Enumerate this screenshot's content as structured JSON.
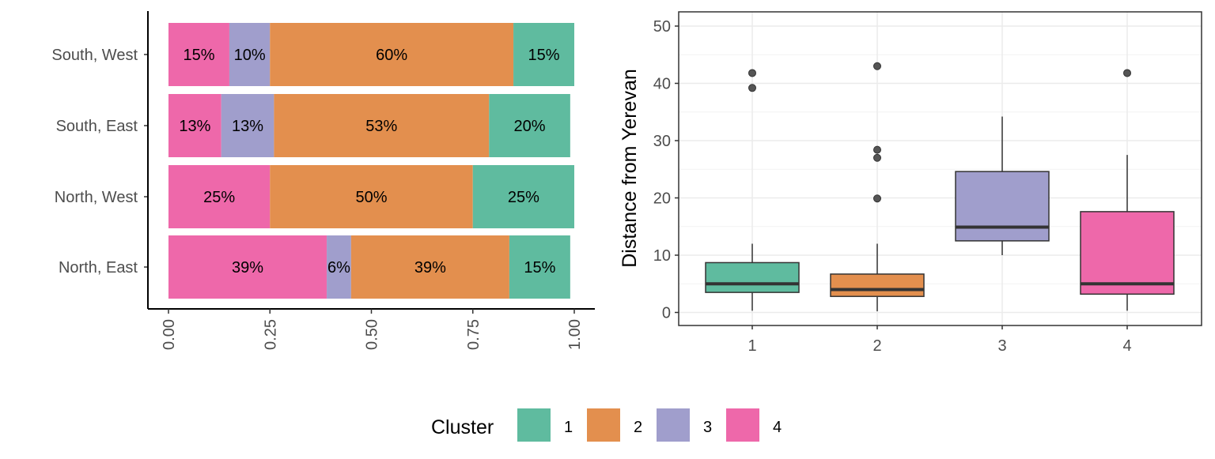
{
  "colors": {
    "cluster_1": "#5fbb9f",
    "cluster_2": "#e38f4e",
    "cluster_3": "#a09ecc",
    "cluster_4": "#ee68aa"
  },
  "legend": {
    "title": "Cluster",
    "placement": "bottom",
    "items": [
      {
        "label": "1",
        "color_key": "cluster_1"
      },
      {
        "label": "2",
        "color_key": "cluster_2"
      },
      {
        "label": "3",
        "color_key": "cluster_3"
      },
      {
        "label": "4",
        "color_key": "cluster_4"
      }
    ]
  },
  "chart_data": [
    {
      "type": "bar",
      "orientation": "horizontal",
      "stacked": "percent",
      "title": "",
      "xlabel": "",
      "ylabel": "",
      "xlim": [
        0,
        1
      ],
      "x_ticks": [
        "0.00",
        "0.25",
        "0.50",
        "0.75",
        "1.00"
      ],
      "grid": false,
      "categories": [
        "South, West",
        "South, East",
        "North, West",
        "North, East"
      ],
      "stack_order_left_to_right": [
        "4",
        "3",
        "2",
        "1"
      ],
      "series": [
        {
          "name": "4",
          "values": [
            0.15,
            0.13,
            0.25,
            0.39
          ],
          "labels": [
            "15%",
            "13%",
            "25%",
            "39%"
          ]
        },
        {
          "name": "3",
          "values": [
            0.1,
            0.13,
            0.0,
            0.06
          ],
          "labels": [
            "10%",
            "13%",
            "",
            "6%"
          ]
        },
        {
          "name": "2",
          "values": [
            0.6,
            0.53,
            0.5,
            0.39
          ],
          "labels": [
            "60%",
            "53%",
            "50%",
            "39%"
          ]
        },
        {
          "name": "1",
          "values": [
            0.15,
            0.2,
            0.25,
            0.15
          ],
          "labels": [
            "15%",
            "20%",
            "25%",
            "15%"
          ]
        }
      ]
    },
    {
      "type": "box",
      "title": "",
      "xlabel": "",
      "ylabel": "Distance from Yerevan",
      "ylim": [
        -2,
        52
      ],
      "y_ticks": [
        0,
        10,
        20,
        30,
        40,
        50
      ],
      "grid": true,
      "categories": [
        "1",
        "2",
        "3",
        "4"
      ],
      "boxes": [
        {
          "name": "1",
          "whisker_low": 0.3,
          "q1": 3.5,
          "median": 5.0,
          "q3": 8.7,
          "whisker_high": 12.0,
          "outliers": [
            39.2,
            41.8
          ]
        },
        {
          "name": "2",
          "whisker_low": 0.2,
          "q1": 2.8,
          "median": 4.0,
          "q3": 6.7,
          "whisker_high": 12.0,
          "outliers": [
            19.9,
            27.0,
            28.4,
            43.0
          ]
        },
        {
          "name": "3",
          "whisker_low": 10.0,
          "q1": 12.5,
          "median": 14.9,
          "q3": 24.6,
          "whisker_high": 34.2,
          "outliers": []
        },
        {
          "name": "4",
          "whisker_low": 0.3,
          "q1": 3.2,
          "median": 5.0,
          "q3": 17.6,
          "whisker_high": 27.5,
          "outliers": [
            41.8
          ]
        }
      ]
    }
  ]
}
